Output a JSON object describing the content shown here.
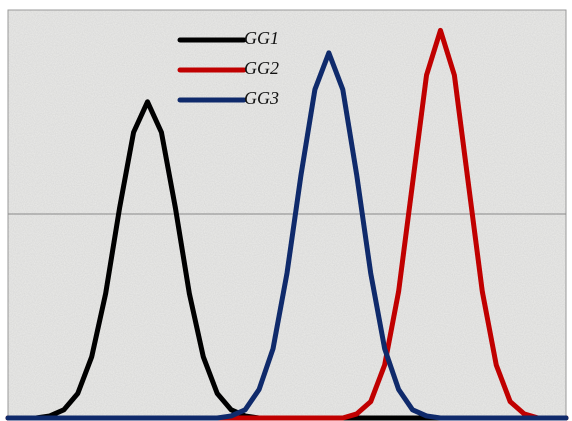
{
  "chart_data": {
    "type": "line",
    "legend": "top",
    "x": [
      0,
      0.25,
      0.5,
      0.75,
      1,
      1.25,
      1.5,
      1.75,
      2,
      2.25,
      2.5,
      2.75,
      3,
      3.25,
      3.5,
      3.75,
      4,
      4.25,
      4.5,
      4.75,
      5,
      5.25,
      5.5,
      5.75,
      6,
      6.25,
      6.5,
      6.75,
      7,
      7.25,
      7.5,
      7.75,
      8,
      8.25,
      8.5,
      8.75,
      9,
      9.25,
      9.5,
      9.75,
      10
    ],
    "series": [
      {
        "name": "GG1",
        "color": "#000000",
        "values": [
          0,
          0,
          0,
          0.01,
          0.04,
          0.12,
          0.3,
          0.61,
          1.03,
          1.4,
          1.55,
          1.4,
          1.03,
          0.61,
          0.3,
          0.12,
          0.04,
          0.01,
          0,
          0,
          0,
          0,
          0,
          0,
          0,
          0,
          0,
          0,
          0,
          0,
          0,
          0,
          0,
          0,
          0,
          0,
          0,
          0,
          0,
          0,
          0
        ]
      },
      {
        "name": "GG2",
        "color": "#c00000",
        "values": [
          0,
          0,
          0,
          0,
          0,
          0,
          0,
          0,
          0,
          0,
          0,
          0,
          0,
          0,
          0,
          0,
          0,
          0,
          0,
          0,
          0,
          0,
          0,
          0,
          0,
          0.02,
          0.08,
          0.26,
          0.62,
          1.15,
          1.68,
          1.9,
          1.68,
          1.15,
          0.62,
          0.26,
          0.08,
          0.02,
          0,
          0,
          0
        ]
      },
      {
        "name": "GG3",
        "color": "#0f2a6b",
        "values": [
          0,
          0,
          0,
          0,
          0,
          0,
          0,
          0,
          0,
          0,
          0,
          0,
          0,
          0,
          0,
          0,
          0.01,
          0.04,
          0.14,
          0.34,
          0.71,
          1.19,
          1.61,
          1.79,
          1.61,
          1.19,
          0.71,
          0.34,
          0.14,
          0.04,
          0.01,
          0,
          0,
          0,
          0,
          0,
          0,
          0,
          0,
          0,
          0
        ]
      }
    ],
    "xlim": [
      0,
      10
    ],
    "ylim": [
      0,
      2
    ],
    "yticks": [
      1
    ],
    "grid": true
  }
}
